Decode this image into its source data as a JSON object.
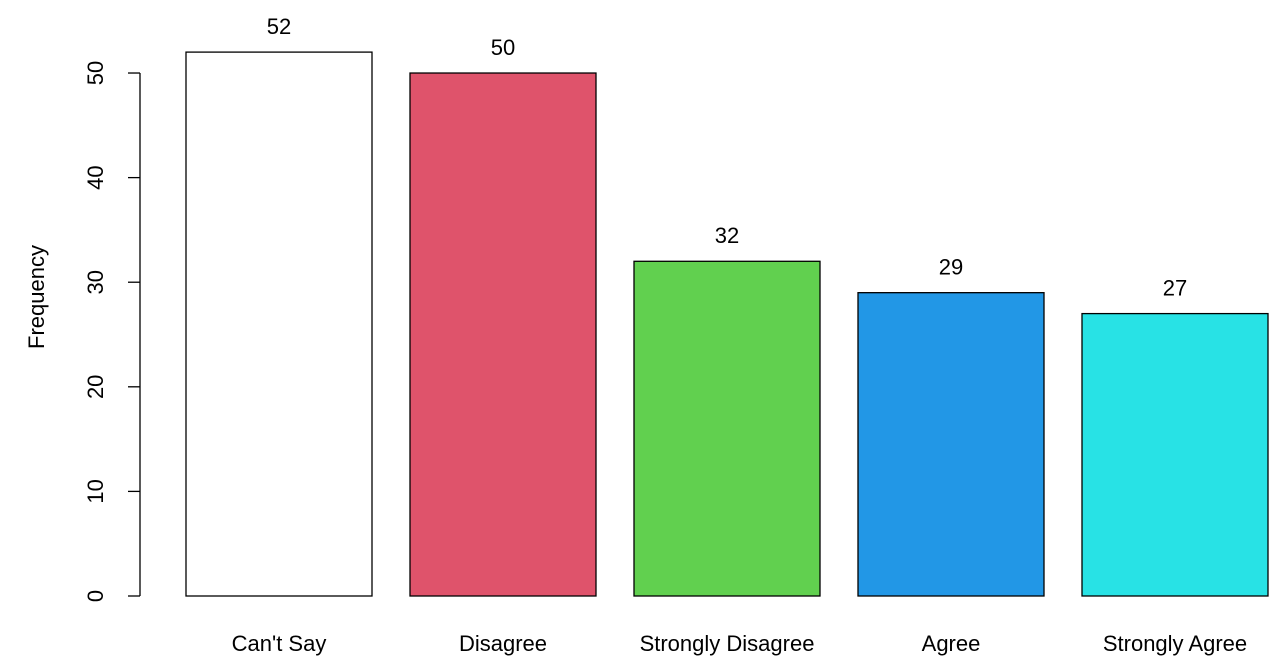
{
  "chart_data": {
    "type": "bar",
    "y_label": "Frequency",
    "categories": [
      "Can't Say",
      "Disagree",
      "Strongly Disagree",
      "Agree",
      "Strongly Agree"
    ],
    "values": [
      52,
      50,
      32,
      29,
      27
    ],
    "colors": [
      "#ffffff",
      "#df536b",
      "#61d04f",
      "#2297e6",
      "#28e2e5"
    ],
    "ylim": [
      0,
      52
    ],
    "yticks": [
      0,
      10,
      20,
      30,
      40,
      50
    ]
  }
}
